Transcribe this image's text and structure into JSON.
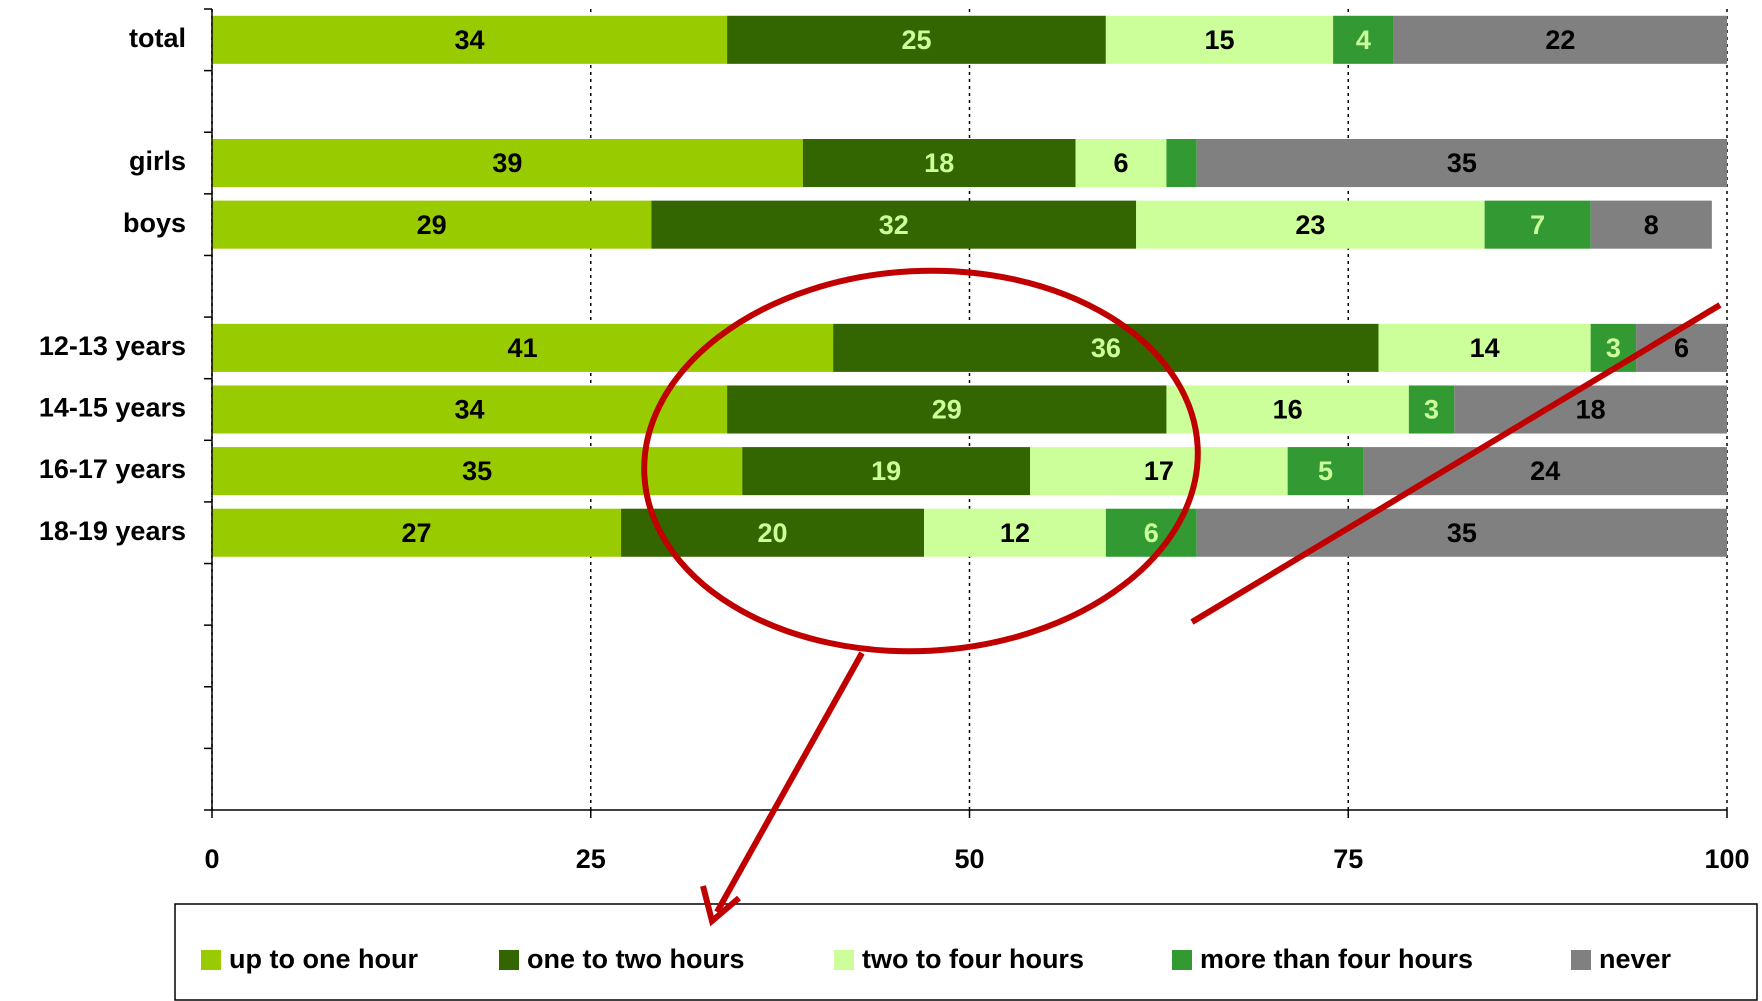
{
  "chart_data": {
    "type": "stacked_bar_horizontal",
    "categories": [
      "total",
      null,
      "girls",
      "boys",
      null,
      "12-13 years",
      "14-15 years",
      "16-17 years",
      "18-19 years",
      null,
      null,
      null,
      null
    ],
    "series": [
      {
        "name": "up to one hour",
        "color": "#99cc00",
        "label_color": "#000000",
        "values": [
          34,
          null,
          39,
          29,
          null,
          41,
          34,
          35,
          27,
          null,
          null,
          null,
          null
        ]
      },
      {
        "name": "one to two hours",
        "color": "#336600",
        "label_color": "#ccff99",
        "values": [
          25,
          null,
          18,
          32,
          null,
          36,
          29,
          19,
          20,
          null,
          null,
          null,
          null
        ]
      },
      {
        "name": "two to four hours",
        "color": "#ccff99",
        "label_color": "#000000",
        "values": [
          15,
          null,
          6,
          23,
          null,
          14,
          16,
          17,
          12,
          null,
          null,
          null,
          null
        ]
      },
      {
        "name": "more than four hours",
        "color": "#339933",
        "label_color": "#ccff99",
        "values": [
          4,
          null,
          2,
          7,
          null,
          3,
          3,
          5,
          6,
          null,
          null,
          null,
          null
        ],
        "value_labels": [
          "4",
          null,
          null,
          "7",
          null,
          "3",
          "3",
          "5",
          "6",
          null,
          null,
          null,
          null
        ]
      },
      {
        "name": "never",
        "color": "#808080",
        "label_color": "#000000",
        "values": [
          22,
          null,
          35,
          8,
          null,
          6,
          18,
          24,
          35,
          null,
          null,
          null,
          null
        ]
      }
    ],
    "xlim": [
      0,
      100
    ],
    "xticks": [
      0,
      25,
      50,
      75,
      100
    ],
    "grid": true,
    "legend": "bottom"
  }
}
